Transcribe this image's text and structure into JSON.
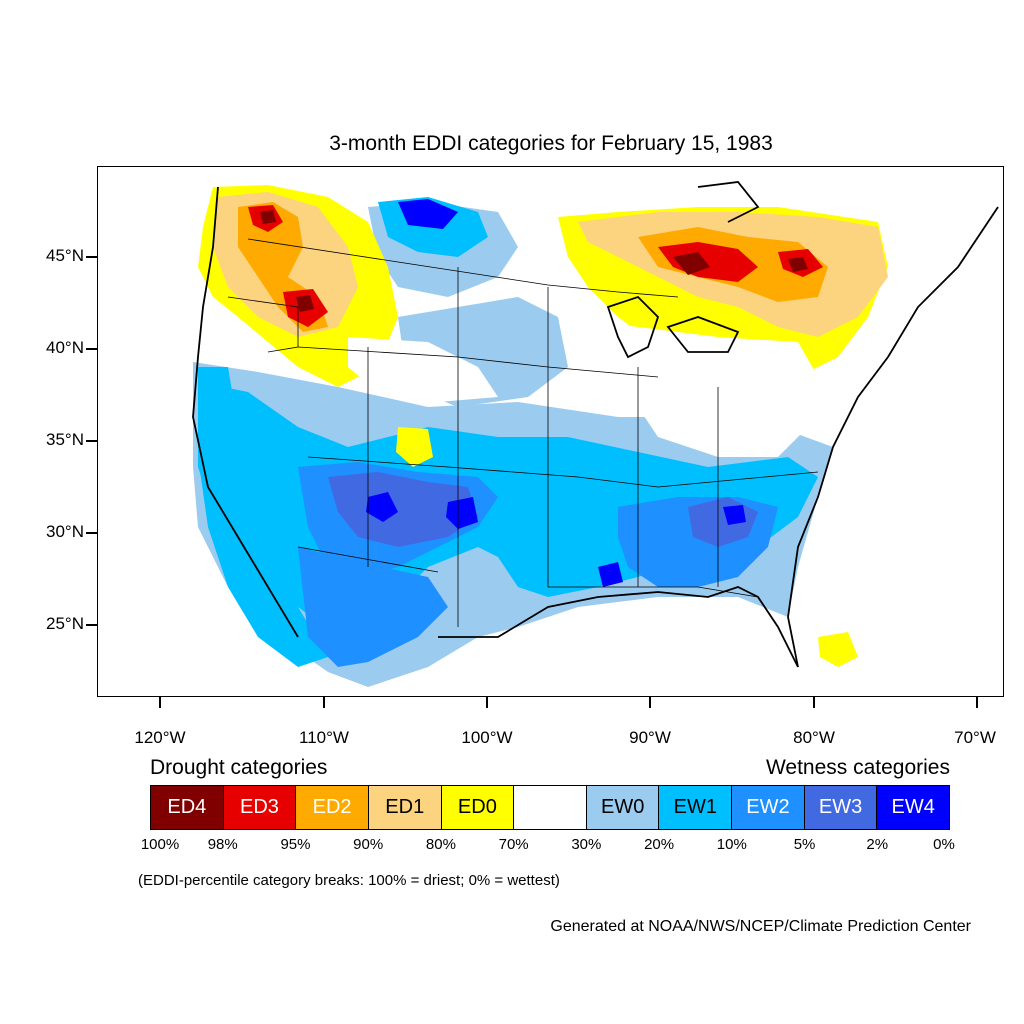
{
  "title": "3-month EDDI categories for February 15, 1983",
  "latitude_labels": [
    "45°N",
    "40°N",
    "35°N",
    "30°N",
    "25°N"
  ],
  "longitude_labels": [
    "120°W",
    "110°W",
    "100°W",
    "90°W",
    "80°W",
    "70°W"
  ],
  "legend": {
    "drought_heading": "Drought categories",
    "wetness_heading": "Wetness categories",
    "categories": [
      {
        "label": "ED4",
        "color": "#800000",
        "text_color": "#ffffff"
      },
      {
        "label": "ED3",
        "color": "#e60000",
        "text_color": "#ffffff"
      },
      {
        "label": "ED2",
        "color": "#ffaa00",
        "text_color": "#ffffff"
      },
      {
        "label": "ED1",
        "color": "#fcd37f",
        "text_color": "#000000"
      },
      {
        "label": "ED0",
        "color": "#ffff00",
        "text_color": "#000000"
      },
      {
        "label": "",
        "color": "#ffffff",
        "text_color": "#000000"
      },
      {
        "label": "EW0",
        "color": "#9ccbf0",
        "text_color": "#000000"
      },
      {
        "label": "EW1",
        "color": "#00bfff",
        "text_color": "#000000"
      },
      {
        "label": "EW2",
        "color": "#1e90ff",
        "text_color": "#ffffff"
      },
      {
        "label": "EW3",
        "color": "#4169e1",
        "text_color": "#ffffff"
      },
      {
        "label": "EW4",
        "color": "#0000ff",
        "text_color": "#ffffff"
      }
    ],
    "breaks": [
      "100%",
      "98%",
      "95%",
      "90%",
      "80%",
      "70%",
      "30%",
      "20%",
      "10%",
      "5%",
      "2%",
      "0%"
    ]
  },
  "note": "(EDDI-percentile category breaks: 100% = driest; 0% = wettest)",
  "credit": "Generated at NOAA/NWS/NCEP/Climate Prediction Center"
}
